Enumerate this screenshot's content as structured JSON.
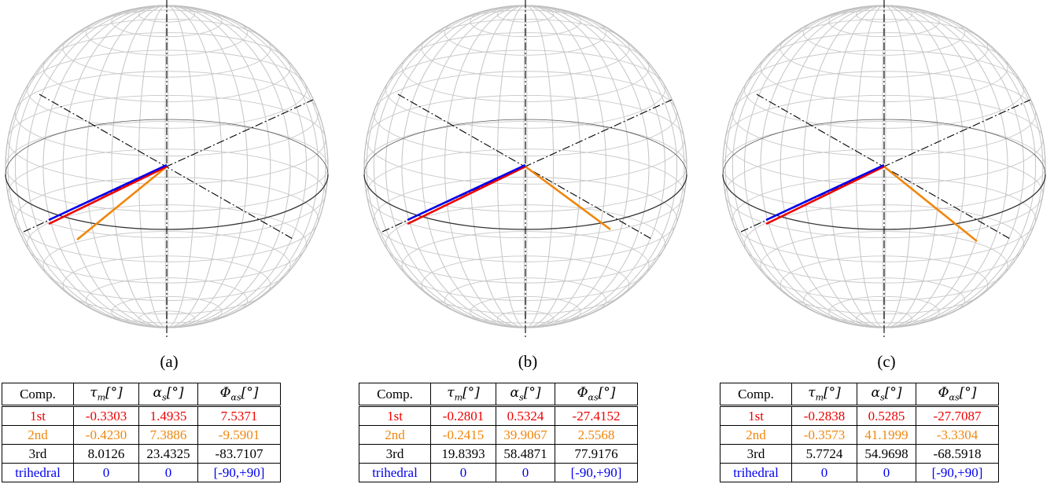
{
  "panels": [
    {
      "caption": "(a)",
      "headers": [
        "Comp.",
        "τm[°]",
        "αs[°]",
        "Φαs[°]"
      ],
      "rows": [
        [
          "1st",
          "-0.3303",
          "1.4935",
          "7.5371"
        ],
        [
          "2nd",
          "-0.4230",
          "7.3886",
          "-9.5901"
        ],
        [
          "3rd",
          "8.0126",
          "23.4325",
          "-83.7107"
        ],
        [
          "trihedral",
          "0",
          "0",
          "[-90,+90]"
        ]
      ]
    },
    {
      "caption": "(b)",
      "headers": [
        "Comp.",
        "τm[°]",
        "αs[°]",
        "Φαs[°]"
      ],
      "rows": [
        [
          "1st",
          "-0.2801",
          "0.5324",
          "-27.4152"
        ],
        [
          "2nd",
          "-0.2415",
          "39.9067",
          "2.5568"
        ],
        [
          "3rd",
          "19.8393",
          "58.4871",
          "77.9176"
        ],
        [
          "trihedral",
          "0",
          "0",
          "[-90,+90]"
        ]
      ]
    },
    {
      "caption": "(c)",
      "headers": [
        "Comp.",
        "τm[°]",
        "αs[°]",
        "Φαs[°]"
      ],
      "rows": [
        [
          "1st",
          "-0.2838",
          "0.5285",
          "-27.7087"
        ],
        [
          "2nd",
          "-0.3573",
          "41.1999",
          "-3.3304"
        ],
        [
          "3rd",
          "5.7724",
          "54.9698",
          "-68.5918"
        ],
        [
          "trihedral",
          "0",
          "0",
          "[-90,+90]"
        ]
      ]
    }
  ],
  "colors": {
    "first": "#ee0000",
    "second": "#f0860c",
    "third": "#000000",
    "trihedral": "#0000ee",
    "mesh": "#c8c8c8"
  }
}
